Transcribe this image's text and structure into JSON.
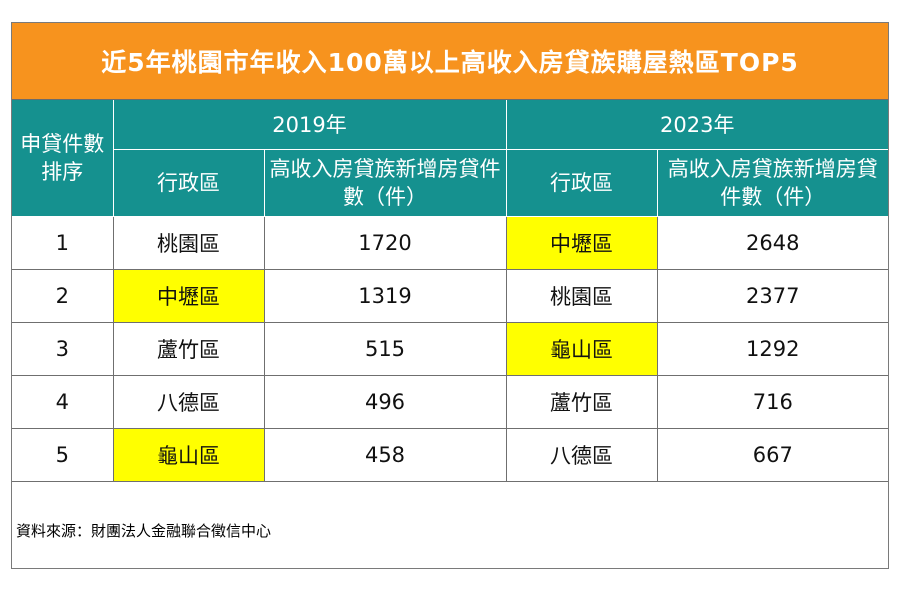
{
  "title": "近5年桃園市年收入100萬以上高收入房貸族購屋熱區TOP5",
  "highlight_color": "#ffff00",
  "header_color": "#15918f",
  "title_bar_color": "#f7931e",
  "chart_data": {
    "type": "table",
    "columns": {
      "rank": "申貸件數排序",
      "year_a": "2019年",
      "year_b": "2023年",
      "district": "行政區",
      "count_a": "高收入房貸族新增房貸件數（件）",
      "count_b": "高收入房貸族新增房貸件數（件）"
    },
    "rows": [
      {
        "rank": "1",
        "d2019": "桃園區",
        "n2019": "1720",
        "d2023": "中壢區",
        "n2023": "2648"
      },
      {
        "rank": "2",
        "d2019": "中壢區",
        "n2019": "1319",
        "d2023": "桃園區",
        "n2023": "2377"
      },
      {
        "rank": "3",
        "d2019": "蘆竹區",
        "n2019": "515",
        "d2023": "龜山區",
        "n2023": "1292"
      },
      {
        "rank": "4",
        "d2019": "八德區",
        "n2019": "496",
        "d2023": "蘆竹區",
        "n2023": "716"
      },
      {
        "rank": "5",
        "d2019": "龜山區",
        "n2019": "458",
        "d2023": "八德區",
        "n2023": "667"
      }
    ],
    "highlighted_districts": [
      "中壢區",
      "龜山區"
    ]
  },
  "source": "資料來源：財團法人金融聯合徵信中心"
}
